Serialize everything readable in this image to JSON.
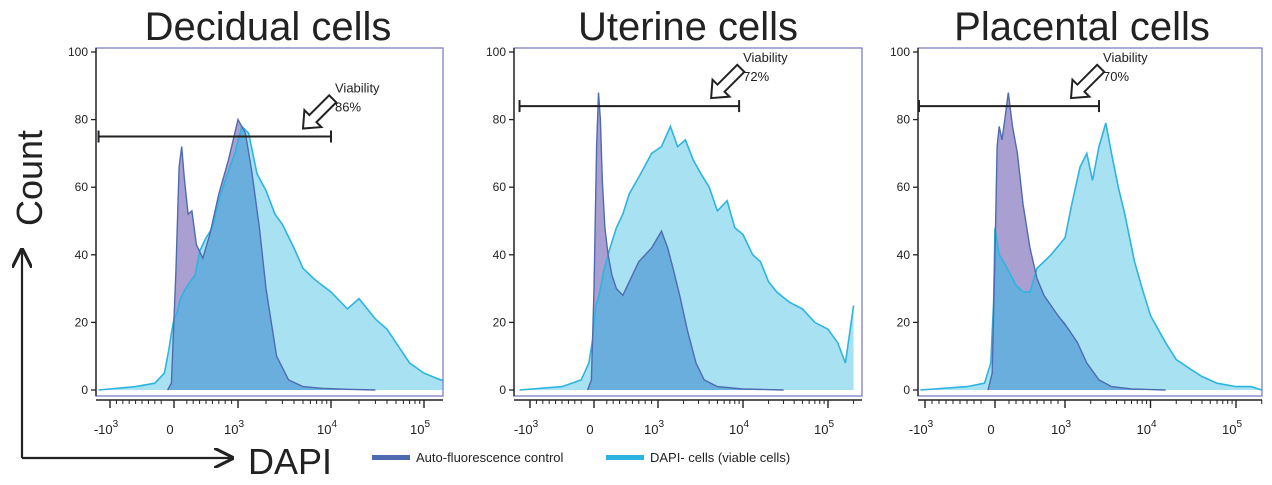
{
  "colors": {
    "control": "#4f6bb0",
    "control_fill": "#9a8ec8",
    "viable": "#2db4e0",
    "viable_fill": "#a8e1f1",
    "overlap_fill": "#6aaede",
    "frame": "#7f7fc7",
    "axis": "#222222"
  },
  "axes": {
    "ylabel": "Count",
    "xlabel": "DAPI",
    "yticks": [
      "0",
      "20",
      "40",
      "60",
      "80",
      "100"
    ],
    "xticks": [
      {
        "base": "-10",
        "exp": "3"
      },
      {
        "base": "0",
        "exp": ""
      },
      {
        "base": "10",
        "exp": "3"
      },
      {
        "base": "10",
        "exp": "4"
      },
      {
        "base": "10",
        "exp": "5"
      }
    ]
  },
  "legend": {
    "control": "Auto-fluorescence control",
    "viable": "DAPI- cells (viable cells)"
  },
  "chart_data": [
    {
      "type": "area",
      "title": "Decidual cells",
      "ylim": [
        0,
        100
      ],
      "gate": {
        "from": -1500,
        "to": 10000,
        "y": 75
      },
      "annotation": {
        "line1": "Viability",
        "line2": "86%"
      },
      "series": [
        {
          "name": "Auto-fluorescence control",
          "x": [
            -100,
            -40,
            30,
            80,
            120,
            160,
            220,
            280,
            350,
            450,
            560,
            700,
            850,
            1000,
            1200,
            1400,
            1700,
            2000,
            2600,
            3500,
            5000,
            8000,
            15000,
            30000
          ],
          "y": [
            0,
            2,
            35,
            66,
            72,
            63,
            52,
            53,
            43,
            39,
            46,
            58,
            68,
            80,
            76,
            65,
            48,
            30,
            10,
            3,
            1,
            0.5,
            0.2,
            0
          ]
        },
        {
          "name": "DAPI- cells (viable cells)",
          "x": [
            -1500,
            -600,
            -300,
            -150,
            -80,
            -30,
            0,
            50,
            100,
            180,
            250,
            330,
            400,
            500,
            600,
            700,
            800,
            950,
            1100,
            1300,
            1600,
            2000,
            2500,
            3000,
            4000,
            5000,
            6500,
            8000,
            10000,
            15000,
            20000,
            30000,
            40000,
            50000,
            70000,
            100000,
            150000,
            200000
          ],
          "y": [
            0,
            1,
            2,
            5,
            12,
            18,
            21,
            23,
            27,
            30,
            32,
            34,
            41,
            45,
            48,
            56,
            62,
            70,
            78,
            76,
            64,
            59,
            52,
            49,
            42,
            36,
            33,
            31,
            29,
            24,
            27,
            21,
            18,
            14,
            8,
            5,
            3,
            3
          ]
        }
      ]
    },
    {
      "type": "area",
      "title": "Uterine cells",
      "ylim": [
        0,
        100
      ],
      "gate": {
        "from": -1500,
        "to": 9000,
        "y": 84
      },
      "annotation": {
        "line1": "Viability",
        "line2": "72%"
      },
      "series": [
        {
          "name": "Auto-fluorescence control",
          "x": [
            -100,
            -40,
            0,
            40,
            70,
            100,
            130,
            170,
            220,
            280,
            350,
            450,
            550,
            700,
            900,
            1100,
            1300,
            1500,
            1800,
            2200,
            2800,
            3500,
            5000,
            10000,
            30000
          ],
          "y": [
            0,
            3,
            30,
            72,
            88,
            80,
            62,
            48,
            40,
            34,
            30,
            28,
            32,
            38,
            42,
            47,
            42,
            36,
            28,
            18,
            8,
            3,
            1,
            0.3,
            0
          ]
        },
        {
          "name": "DAPI- cells (viable cells)",
          "x": [
            -1500,
            -500,
            -200,
            -80,
            -20,
            0,
            30,
            80,
            150,
            250,
            350,
            450,
            550,
            700,
            900,
            1100,
            1400,
            1700,
            2100,
            2600,
            3200,
            4000,
            5000,
            6500,
            8000,
            10000,
            13000,
            16000,
            20000,
            25000,
            35000,
            50000,
            70000,
            100000,
            130000,
            160000,
            200000
          ],
          "y": [
            0,
            1,
            3,
            8,
            15,
            20,
            25,
            28,
            35,
            42,
            48,
            52,
            58,
            63,
            70,
            72,
            78,
            72,
            74,
            68,
            64,
            60,
            53,
            56,
            48,
            46,
            40,
            38,
            32,
            29,
            26,
            24,
            20,
            18,
            14,
            8,
            25
          ]
        }
      ]
    },
    {
      "type": "area",
      "title": "Placental cells",
      "ylim": [
        0,
        100
      ],
      "gate": {
        "from": -1500,
        "to": 2500,
        "y": 84
      },
      "annotation": {
        "line1": "Viability",
        "line2": "70%"
      },
      "series": [
        {
          "name": "Auto-fluorescence control",
          "x": [
            -100,
            -40,
            0,
            30,
            60,
            100,
            140,
            190,
            250,
            320,
            400,
            500,
            600,
            700,
            900,
            1100,
            1400,
            1800,
            2500,
            3500,
            6000,
            15000
          ],
          "y": [
            0,
            5,
            40,
            72,
            78,
            74,
            80,
            88,
            78,
            70,
            55,
            42,
            33,
            28,
            22,
            18,
            14,
            8,
            3,
            1,
            0.3,
            0
          ]
        },
        {
          "name": "DAPI- cells (viable cells)",
          "x": [
            -1200,
            -400,
            -150,
            -60,
            -20,
            0,
            20,
            60,
            120,
            200,
            300,
            400,
            500,
            600,
            800,
            1000,
            1200,
            1500,
            1800,
            2100,
            2500,
            3000,
            3500,
            4200,
            5000,
            6500,
            8000,
            10000,
            15000,
            20000,
            30000,
            40000,
            60000,
            100000,
            150000,
            200000
          ],
          "y": [
            0,
            1,
            2,
            8,
            26,
            48,
            45,
            40,
            38,
            35,
            31,
            29,
            29,
            36,
            40,
            45,
            55,
            66,
            70,
            62,
            72,
            79,
            70,
            60,
            52,
            38,
            30,
            22,
            14,
            9,
            6,
            4,
            2,
            1,
            1,
            0
          ]
        }
      ]
    }
  ]
}
